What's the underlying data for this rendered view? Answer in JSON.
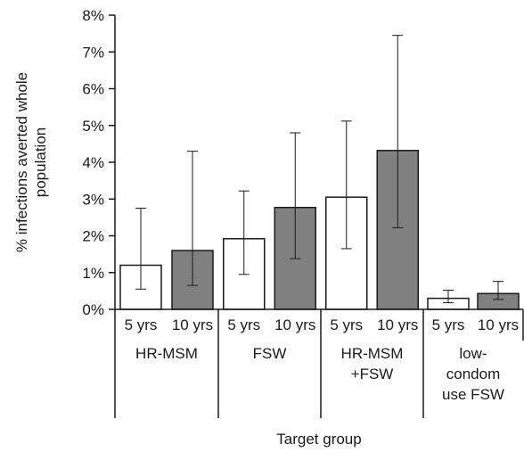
{
  "chart_data": {
    "type": "bar",
    "title": "",
    "ylabel_lines": [
      "% infections averted whole",
      "population"
    ],
    "xlabel": "Target group",
    "ylim": [
      0,
      8
    ],
    "yticks": [
      0,
      1,
      2,
      3,
      4,
      5,
      6,
      7,
      8
    ],
    "ytick_labels": [
      "0%",
      "1%",
      "2%",
      "3%",
      "4%",
      "5%",
      "6%",
      "7%",
      "8%"
    ],
    "groups": [
      {
        "label_lines": [
          "HR-MSM"
        ],
        "bars": [
          {
            "label": "5 yrs",
            "value": 1.2,
            "err_low": 0.55,
            "err_high": 2.75
          },
          {
            "label": "10 yrs",
            "value": 1.6,
            "err_low": 0.65,
            "err_high": 4.3
          }
        ]
      },
      {
        "label_lines": [
          "FSW"
        ],
        "bars": [
          {
            "label": "5 yrs",
            "value": 1.92,
            "err_low": 0.95,
            "err_high": 3.22
          },
          {
            "label": "10 yrs",
            "value": 2.77,
            "err_low": 1.38,
            "err_high": 4.8
          }
        ]
      },
      {
        "label_lines": [
          "HR-MSM",
          "+FSW"
        ],
        "bars": [
          {
            "label": "5 yrs",
            "value": 3.05,
            "err_low": 1.65,
            "err_high": 5.12
          },
          {
            "label": "10 yrs",
            "value": 4.32,
            "err_low": 2.22,
            "err_high": 7.45
          }
        ]
      },
      {
        "label_lines": [
          "low-",
          "condom",
          "use FSW"
        ],
        "bars": [
          {
            "label": "5 yrs",
            "value": 0.3,
            "err_low": 0.18,
            "err_high": 0.52
          },
          {
            "label": "10 yrs",
            "value": 0.43,
            "err_low": 0.27,
            "err_high": 0.76
          }
        ]
      }
    ],
    "bar_colors": [
      "#ffffff",
      "#808080"
    ],
    "bar_edge_color": "#1a1a1a",
    "grid": false
  }
}
